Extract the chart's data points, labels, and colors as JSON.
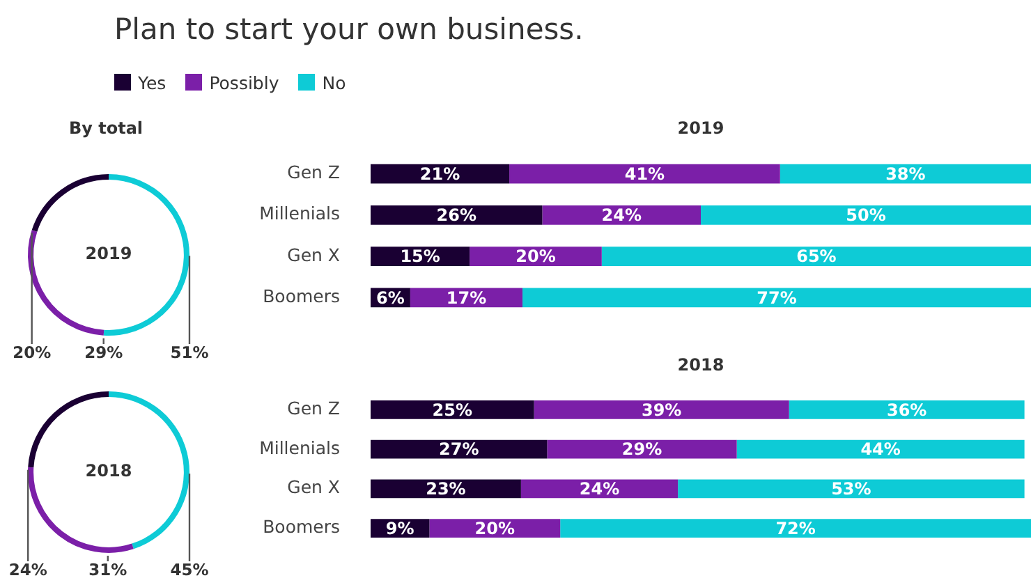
{
  "chart_data": [
    {
      "type": "donut",
      "title": "Plan to start your own business.",
      "subtitle": "By total",
      "legend": "top",
      "categories": [
        "Yes",
        "Possibly",
        "No"
      ],
      "values": [
        20,
        29,
        51
      ],
      "colors": [
        "#1a0033",
        "#7b1fa8",
        "#0ecbd6"
      ],
      "value_labels": [
        "20%",
        "29%",
        "51%"
      ],
      "annotations": [
        "2019"
      ]
    },
    {
      "type": "donut",
      "categories": [
        null,
        null,
        null
      ],
      "values": [
        24,
        31,
        45
      ],
      "colors": [
        "#1a0033",
        "#7b1fa8",
        "#0ecbd6"
      ],
      "value_labels": [
        "24%",
        "31%",
        "45%"
      ],
      "annotations": [
        "2018"
      ]
    },
    {
      "type": "bar",
      "orientation": "horizontal",
      "stacked": true,
      "title": "2019",
      "categories": [
        "Gen Z",
        "Millenials",
        "Gen X",
        "Boomers"
      ],
      "xlim": [
        0,
        100
      ],
      "tick_labels": "y",
      "series": [
        {
          "color": "#1a0033",
          "values": [
            21,
            26,
            15,
            6
          ],
          "value_labels": [
            "21%",
            "26%",
            "15%",
            "6%"
          ]
        },
        {
          "color": "#7b1fa8",
          "values": [
            41,
            24,
            20,
            17
          ],
          "value_labels": [
            "41%",
            "24%",
            "20%",
            "17%"
          ]
        },
        {
          "color": "#0ecbd6",
          "values": [
            38,
            50,
            65,
            77
          ],
          "value_labels": [
            "38%",
            "50%",
            "65%",
            "77%"
          ]
        }
      ]
    },
    {
      "type": "bar",
      "orientation": "horizontal",
      "stacked": true,
      "title": "2018",
      "categories": [
        "Gen Z",
        "Millenials",
        "Gen X",
        "Boomers"
      ],
      "xlim": [
        0,
        101
      ],
      "tick_labels": "y",
      "series": [
        {
          "color": "#1a0033",
          "values": [
            25,
            27,
            23,
            9
          ],
          "value_labels": [
            "25%",
            "27%",
            "23%",
            "9%"
          ]
        },
        {
          "color": "#7b1fa8",
          "values": [
            39,
            29,
            24,
            20
          ],
          "value_labels": [
            "39%",
            "29%",
            "24%",
            "20%"
          ]
        },
        {
          "color": "#0ecbd6",
          "values": [
            36,
            44,
            53,
            72
          ],
          "value_labels": [
            "36%",
            "44%",
            "53%",
            "72%"
          ]
        }
      ]
    }
  ]
}
